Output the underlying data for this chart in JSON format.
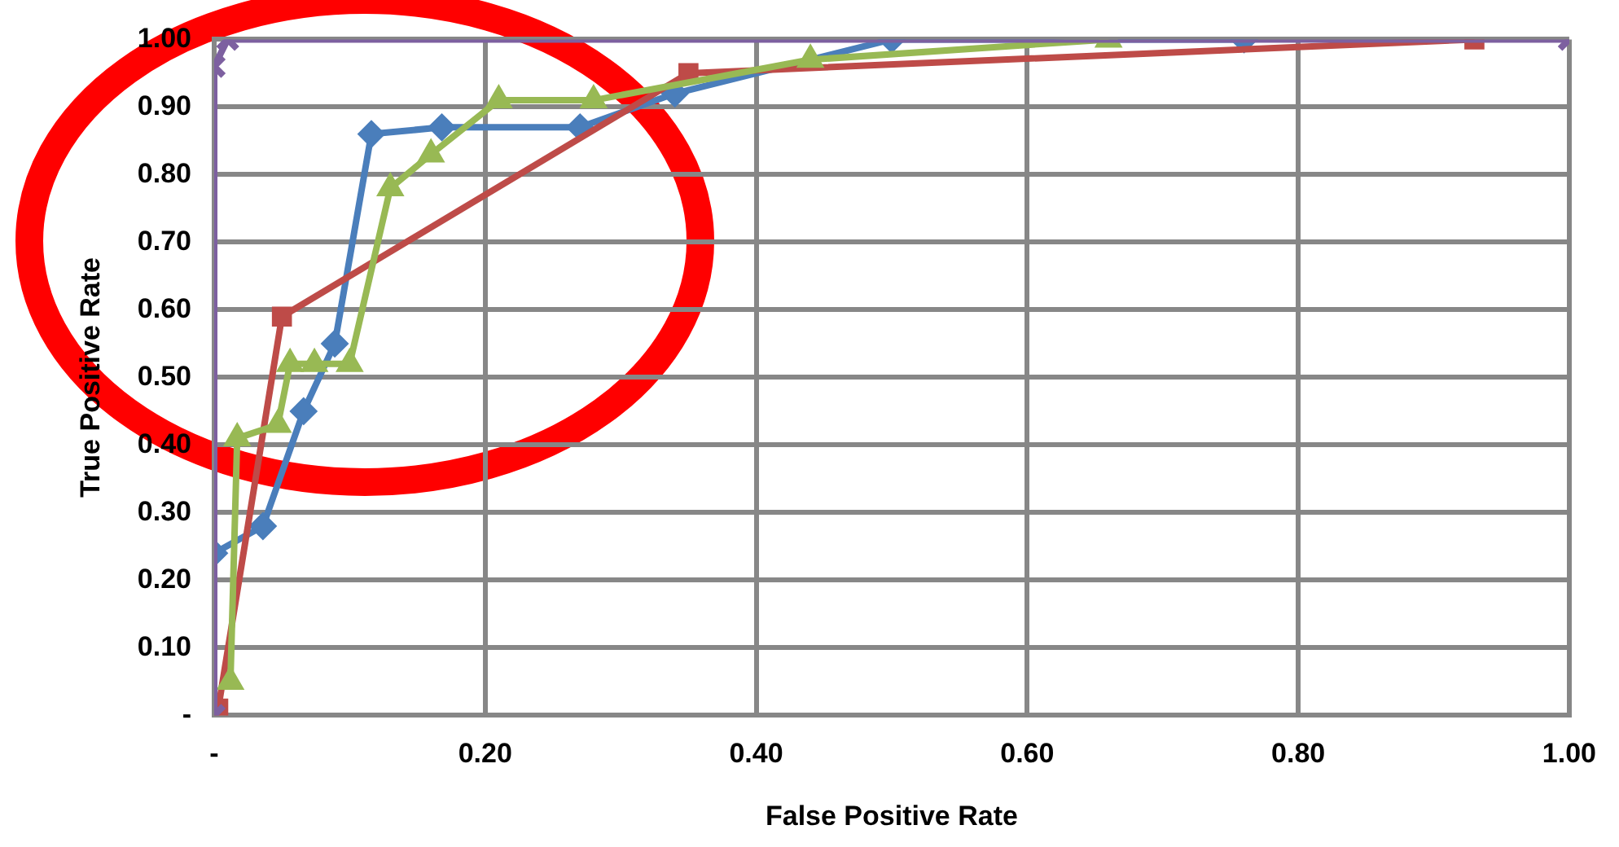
{
  "chart_data": {
    "type": "line",
    "xlabel": "False Positive Rate",
    "ylabel": "True Positive Rate",
    "xlim": [
      0,
      1
    ],
    "ylim": [
      0,
      1
    ],
    "xticks": [
      {
        "value": 0,
        "label": "-"
      },
      {
        "value": 0.2,
        "label": "0.20"
      },
      {
        "value": 0.4,
        "label": "0.40"
      },
      {
        "value": 0.6,
        "label": "0.60"
      },
      {
        "value": 0.8,
        "label": "0.80"
      },
      {
        "value": 1,
        "label": "1.00"
      }
    ],
    "yticks": [
      {
        "value": 0,
        "label": "-"
      },
      {
        "value": 0.1,
        "label": "0.10"
      },
      {
        "value": 0.2,
        "label": "0.20"
      },
      {
        "value": 0.3,
        "label": "0.30"
      },
      {
        "value": 0.4,
        "label": "0.40"
      },
      {
        "value": 0.5,
        "label": "0.50"
      },
      {
        "value": 0.6,
        "label": "0.60"
      },
      {
        "value": 0.7,
        "label": "0.70"
      },
      {
        "value": 0.8,
        "label": "0.80"
      },
      {
        "value": 0.9,
        "label": "0.90"
      },
      {
        "value": 1,
        "label": "1.00"
      }
    ],
    "grid": true,
    "legend": false,
    "series": [
      {
        "color": "#4a7ebb",
        "marker": "diamond",
        "x": [
          0.0,
          0.036,
          0.066,
          0.089,
          0.116,
          0.168,
          0.27,
          0.34,
          0.5,
          0.76
        ],
        "values": [
          0.24,
          0.28,
          0.45,
          0.55,
          0.86,
          0.87,
          0.87,
          0.92,
          1.0,
          1.0
        ]
      },
      {
        "color": "#be4b48",
        "marker": "square",
        "x": [
          0.003,
          0.05,
          0.35,
          0.93
        ],
        "values": [
          0.01,
          0.59,
          0.95,
          1.0
        ]
      },
      {
        "color": "#98b954",
        "marker": "triangle",
        "x": [
          0.012,
          0.017,
          0.047,
          0.056,
          0.074,
          0.1,
          0.13,
          0.16,
          0.21,
          0.28,
          0.44,
          0.66
        ],
        "values": [
          0.05,
          0.41,
          0.43,
          0.52,
          0.52,
          0.52,
          0.78,
          0.83,
          0.91,
          0.91,
          0.97,
          1.0
        ]
      },
      {
        "color": "#7d60a0",
        "marker": "cross",
        "x": [
          0,
          0,
          0.01,
          1
        ],
        "values": [
          0,
          0.96,
          1.0,
          1.0
        ]
      }
    ]
  }
}
